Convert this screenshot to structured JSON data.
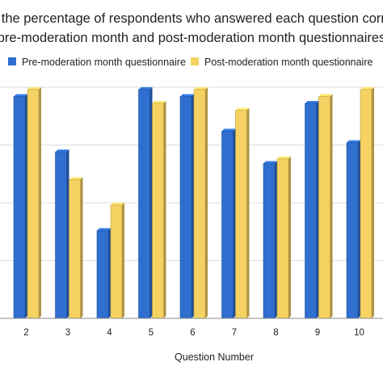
{
  "chart_data": {
    "type": "bar",
    "title_lines": [
      "g the percentage of respondents who answered each question corre",
      "pre-moderation month and post-moderation month questionnaires"
    ],
    "xlabel": "Question Number",
    "ylabel": "",
    "ylim": [
      0,
      100
    ],
    "grid": true,
    "legend_position": "top",
    "categories": [
      "2",
      "3",
      "4",
      "5",
      "6",
      "7",
      "8",
      "9",
      "10"
    ],
    "series": [
      {
        "name": "Pre-moderation month questionnaire",
        "color": "#2F6FD0",
        "values": [
          96,
          72,
          38,
          99,
          96,
          81,
          67,
          93,
          76
        ]
      },
      {
        "name": "Post-moderation month questionnaire",
        "color": "#F5D262",
        "values": [
          99,
          60,
          49,
          93,
          99,
          90,
          69,
          96,
          99
        ]
      }
    ]
  }
}
